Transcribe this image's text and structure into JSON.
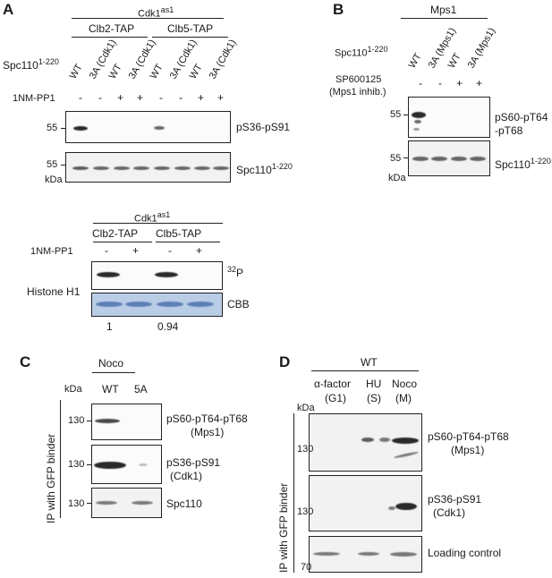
{
  "panelA": {
    "letter": "A",
    "strain": "Cdk1",
    "strain_sup": "as1",
    "groups": [
      "Clb2-TAP",
      "Clb5-TAP"
    ],
    "row1_label": "Spc110",
    "row1_sup": "1-220",
    "lanes": [
      "WT",
      "3A (Cdk1)",
      "WT",
      "3A (Cdk1)",
      "WT",
      "3A (Cdk1)",
      "WT",
      "3A (Cdk1)"
    ],
    "row2_label": "1NM-PP1",
    "treatment": [
      "-",
      "-",
      "+",
      "+",
      "-",
      "-",
      "+",
      "+"
    ],
    "marker1": "55",
    "marker2": "55",
    "kda": "kDa",
    "blot1_label": "pS36-pS91",
    "blot2_label": "Spc110",
    "blot2_sup": "1-220",
    "kinase": {
      "strain": "Cdk1",
      "strain_sup": "as1",
      "groups": [
        "Clb2-TAP",
        "Clb5-TAP"
      ],
      "row_label": "1NM-PP1",
      "treatment": [
        "-",
        "+",
        "-",
        "+"
      ],
      "substrate": "Histone H1",
      "p32_sup": "32",
      "p32": "P",
      "cbb": "CBB",
      "quant": [
        "1",
        "0.94"
      ]
    }
  },
  "panelB": {
    "letter": "B",
    "strain": "Mps1",
    "row1_label": "Spc110",
    "row1_sup": "1-220",
    "lanes": [
      "WT",
      "3A (Mps1)",
      "WT",
      "3A (Mps1)"
    ],
    "inhibitor": "SP600125",
    "inhibitor_note": "(Mps1 inhib.)",
    "treatment": [
      "-",
      "-",
      "+",
      "+"
    ],
    "marker1": "55",
    "marker2": "55",
    "kda": "kDa",
    "blot1_label_line1": "pS60-pT64",
    "blot1_label_line2": "-pT68",
    "blot2_label": "Spc110",
    "blot2_sup": "1-220"
  },
  "panelC": {
    "letter": "C",
    "condition": "Noco",
    "kda": "kDa",
    "lanes": [
      "WT",
      "5A"
    ],
    "side_label": "IP with GFP binder",
    "markers": [
      "130",
      "130",
      "130"
    ],
    "blot1_label_line1": "pS60-pT64-pT68",
    "blot1_label_line2": "(Mps1)",
    "blot2_label_line1": "pS36-pS91",
    "blot2_label_line2": "(Cdk1)",
    "blot3_label": "Spc110"
  },
  "panelD": {
    "letter": "D",
    "strain": "WT",
    "kda": "kDa",
    "conditions": [
      {
        "name": "α-factor",
        "phase": "(G1)"
      },
      {
        "name": "HU",
        "phase": "(S)"
      },
      {
        "name": "Noco",
        "phase": "(M)"
      }
    ],
    "side_label": "IP with GFP binder",
    "markers": [
      "130",
      "130",
      "70"
    ],
    "blot1_label_line1": "pS60-pT64-pT68",
    "blot1_label_line2": "(Mps1)",
    "blot2_label_line1": "pS36-pS91",
    "blot2_label_line2": "(Cdk1)",
    "blot3_label": "Loading control"
  }
}
